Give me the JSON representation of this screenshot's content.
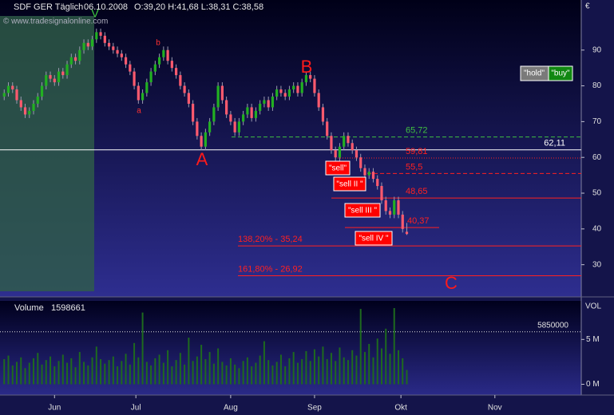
{
  "chart_data": {
    "type": "candlestick",
    "symbol": "SDF GER Täglich",
    "date": "06.10.2008",
    "ohlc_text": "O:39,20 H:41,68 L:38,31 C:38,58",
    "watermark": "© www.tradesignalonline.com",
    "currency": "€",
    "up_color": "#22b022",
    "down_color": "#ff5a6e",
    "xlim": [
      -1,
      137.6
    ],
    "xticks": [
      {
        "value": 12,
        "label": "Jun"
      },
      {
        "value": 31.4,
        "label": "Jul"
      },
      {
        "value": 54,
        "label": "Aug"
      },
      {
        "value": 74,
        "label": "Sep"
      },
      {
        "value": 94.6,
        "label": "Okt"
      },
      {
        "value": 117,
        "label": "Nov"
      }
    ],
    "ylim": [
      21,
      104
    ],
    "yticks": [
      30,
      40,
      50,
      60,
      70,
      80,
      90
    ],
    "open": [
      77,
      78,
      80,
      79,
      76,
      74,
      72,
      73,
      75,
      77,
      80,
      83,
      82,
      81,
      84,
      83,
      86,
      88,
      87,
      90,
      92,
      91,
      93,
      95,
      94,
      92,
      91,
      90,
      89,
      88,
      86,
      84,
      80,
      76,
      78,
      81,
      84,
      86,
      88,
      90,
      87,
      85,
      83,
      80,
      78,
      75,
      70,
      66,
      63,
      67,
      70,
      74,
      80,
      76,
      72,
      70,
      67,
      70,
      72,
      74,
      71,
      73,
      75,
      76,
      74,
      77,
      79,
      78,
      77,
      79,
      80,
      78,
      81,
      83,
      82,
      78,
      74,
      70,
      66,
      62,
      60,
      63,
      66,
      64,
      62,
      60,
      57,
      55,
      56,
      54,
      52,
      48,
      45,
      44,
      48,
      44,
      39.2
    ],
    "high": [
      79,
      81,
      81,
      80,
      77,
      75,
      74,
      76,
      78,
      81,
      84,
      84,
      83,
      85,
      85,
      87,
      89,
      89,
      91,
      93,
      93,
      94,
      96,
      96,
      95,
      93,
      92,
      91,
      90,
      89,
      87,
      85,
      81,
      79,
      82,
      85,
      87,
      89,
      91,
      91,
      88,
      86,
      84,
      81,
      79,
      76,
      71,
      67,
      68,
      71,
      75,
      81,
      81,
      77,
      73,
      71,
      71,
      73,
      75,
      75,
      74,
      76,
      77,
      77,
      78,
      80,
      80,
      79,
      80,
      81,
      81,
      82,
      84,
      84,
      83,
      79,
      75,
      71,
      67,
      63,
      64,
      67,
      67,
      65,
      63,
      61,
      58,
      57,
      57,
      55,
      53,
      49,
      46,
      49,
      49,
      45,
      41.68
    ],
    "low": [
      76,
      77,
      78,
      75,
      73,
      71,
      71,
      72,
      74,
      76,
      79,
      81,
      80,
      80,
      82,
      82,
      85,
      86,
      86,
      89,
      90,
      90,
      92,
      93,
      91,
      90,
      89,
      88,
      87,
      85,
      83,
      79,
      75,
      75,
      77,
      80,
      83,
      85,
      87,
      86,
      84,
      82,
      79,
      77,
      74,
      69,
      65,
      62,
      62,
      66,
      69,
      73,
      75,
      71,
      69,
      66,
      66,
      69,
      71,
      70,
      70,
      72,
      74,
      73,
      73,
      76,
      77,
      76,
      76,
      78,
      77,
      77,
      80,
      81,
      77,
      73,
      69,
      65,
      61,
      59,
      59,
      62,
      63,
      61,
      59,
      56,
      54,
      54,
      53,
      51,
      47,
      44,
      43,
      43,
      43,
      39,
      38.31
    ],
    "close": [
      78,
      80,
      79,
      76,
      74,
      72,
      73,
      75,
      77,
      80,
      83,
      82,
      81,
      84,
      83,
      86,
      88,
      87,
      90,
      92,
      91,
      93,
      95,
      94,
      92,
      91,
      90,
      89,
      88,
      86,
      84,
      80,
      76,
      78,
      81,
      84,
      86,
      88,
      90,
      87,
      85,
      83,
      80,
      78,
      75,
      70,
      66,
      63,
      67,
      70,
      74,
      80,
      76,
      72,
      70,
      67,
      70,
      72,
      74,
      71,
      73,
      75,
      76,
      74,
      77,
      79,
      78,
      77,
      79,
      80,
      78,
      81,
      83,
      82,
      78,
      74,
      70,
      66,
      62,
      60,
      63,
      66,
      64,
      62,
      60,
      57,
      55,
      56,
      54,
      52,
      48,
      45,
      44,
      48,
      44,
      40,
      38.58
    ],
    "levels": [
      {
        "value": 65.72,
        "label": "65,72",
        "color": "#40c040",
        "style": "dashed"
      },
      {
        "value": 62.11,
        "label": "62,11",
        "color": "#ffffff",
        "style": "solid"
      },
      {
        "value": 59.81,
        "label": "59,81",
        "color": "#ff2020",
        "style": "dotted"
      },
      {
        "value": 55.5,
        "label": "55,5",
        "color": "#ff2020",
        "style": "dashed"
      },
      {
        "value": 48.65,
        "label": "48,65",
        "color": "#ff2020",
        "style": "solid"
      },
      {
        "value": 40.37,
        "label": "40,37",
        "color": "#ff2020",
        "style": "solid"
      },
      {
        "value": 35.24,
        "label": "138,20% - 35,24",
        "color": "#ff2020",
        "style": "solid"
      },
      {
        "value": 26.92,
        "label": "161,80% - 26,92",
        "color": "#ff2020",
        "style": "solid"
      }
    ],
    "annotations": [
      "V",
      "a",
      "b",
      "A",
      "B",
      "C",
      "\"sell\"",
      "\"sell II \"",
      "\"sell III \"",
      "\"sell IV \"",
      "\"hold\"",
      "\"buy\""
    ],
    "volume": {
      "name": "Volume",
      "last": 1598661,
      "axis_label": "VOL",
      "color": "#1e6a1e",
      "ylim": [
        -1200000,
        9300000
      ],
      "yticks": [
        {
          "value": 0,
          "label": "0 M"
        },
        {
          "value": 5000000,
          "label": "5 M"
        }
      ],
      "level": 5850000,
      "values": [
        2800000,
        3200000,
        2100000,
        2500000,
        3000000,
        1800000,
        2400000,
        2900000,
        3500000,
        2200000,
        2700000,
        3100000,
        2000000,
        2600000,
        3300000,
        2400000,
        2900000,
        1900000,
        3600000,
        2500000,
        2100000,
        3000000,
        4200000,
        2800000,
        2300000,
        2700000,
        3100000,
        2000000,
        2600000,
        3400000,
        2200000,
        4600000,
        3000000,
        8000000,
        2500000,
        2100000,
        2900000,
        3300000,
        2400000,
        3800000,
        2000000,
        2700000,
        3500000,
        2200000,
        5200000,
        2600000,
        3100000,
        4400000,
        2800000,
        3600000,
        2300000,
        4000000,
        2500000,
        2100000,
        2900000,
        2200000,
        1800000,
        2600000,
        3000000,
        2000000,
        2400000,
        3200000,
        4800000,
        2700000,
        2100000,
        2500000,
        3300000,
        2000000,
        2900000,
        3600000,
        2400000,
        2800000,
        3700000,
        2600000,
        3900000,
        3100000,
        4200000,
        2800000,
        3500000,
        2600000,
        4100000,
        3000000,
        2700000,
        3800000,
        3200000,
        8400000,
        3600000,
        4500000,
        3000000,
        5100000,
        4000000,
        6200000,
        3400000,
        8500000,
        3800000,
        2900000,
        1598661
      ]
    }
  }
}
